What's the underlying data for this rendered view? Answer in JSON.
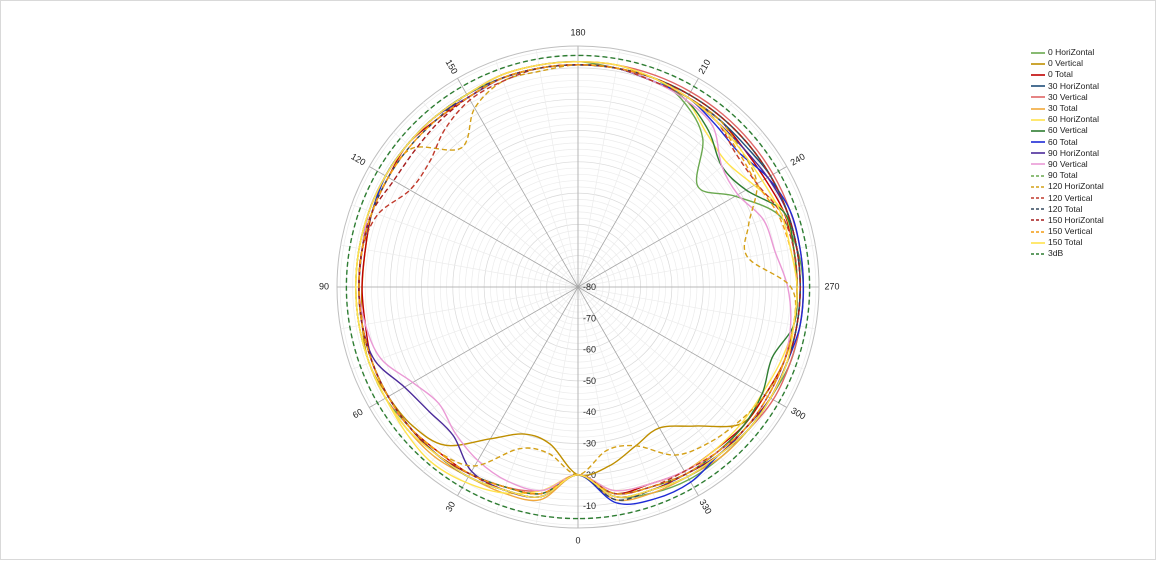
{
  "chart_data": {
    "type": "polar-line",
    "title": "",
    "angle_labels": [
      "0",
      "30",
      "60",
      "90",
      "120",
      "150",
      "180",
      "210",
      "240",
      "270",
      "300",
      "330"
    ],
    "radial_ticks": [
      -10,
      -20,
      -30,
      -40,
      -50,
      -60,
      -70,
      -80
    ],
    "radial_range": [
      -80,
      -3
    ],
    "grid": true,
    "legend_position": "right",
    "angle_direction": "0 at bottom, increasing clockwise (90 left, 180 top, 270 right)",
    "series": [
      {
        "name": "0 HoriZontal",
        "color": "#6aa84f",
        "dash": "solid",
        "anchor_values": [
          -20,
          -12,
          -11,
          -10,
          -10,
          -9,
          -9,
          -9,
          -9,
          -9,
          -9,
          -9,
          -9,
          -9,
          -9,
          -9,
          -8,
          -8,
          -8,
          -9,
          -9,
          -12,
          -18,
          -30,
          -22,
          -12,
          -9,
          -8,
          -8,
          -8,
          -9,
          -9,
          -9,
          -9,
          -10,
          -12
        ]
      },
      {
        "name": "0 Vertical",
        "color": "#bf8f00",
        "dash": "solid",
        "anchor_values": [
          -20,
          -29,
          -30,
          -24,
          -14,
          -11,
          -10,
          -9,
          -10,
          -11,
          -11,
          -10,
          -9,
          -9,
          -9,
          -9,
          -8,
          -8,
          -8,
          -8,
          -9,
          -9,
          -9,
          -9,
          -9,
          -9,
          -10,
          -10,
          -10,
          -10,
          -11,
          -12,
          -22,
          -28,
          -26,
          -22
        ]
      },
      {
        "name": "0 Total",
        "color": "#c00000",
        "dash": "solid",
        "anchor_values": [
          -20,
          -13,
          -12,
          -11,
          -11,
          -10,
          -10,
          -10,
          -11,
          -11,
          -11,
          -10,
          -10,
          -9,
          -10,
          -10,
          -9,
          -9,
          -9,
          -9,
          -10,
          -10,
          -10,
          -11,
          -11,
          -10,
          -10,
          -10,
          -10,
          -10,
          -11,
          -11,
          -12,
          -12,
          -13,
          -13
        ]
      },
      {
        "name": "30 HoriZontal",
        "color": "#1f4e79",
        "dash": "solid",
        "anchor_values": [
          -20,
          -12,
          -11,
          -10,
          -10,
          -10,
          -10,
          -10,
          -10,
          -10,
          -10,
          -10,
          -9,
          -9,
          -9,
          -9,
          -9,
          -9,
          -9,
          -9,
          -10,
          -10,
          -10,
          -10,
          -9,
          -9,
          -9,
          -9,
          -9,
          -9,
          -9,
          -10,
          -10,
          -10,
          -11,
          -12
        ]
      },
      {
        "name": "30 Vertical",
        "color": "#e06666",
        "dash": "solid",
        "anchor_values": [
          -20,
          -14,
          -12,
          -11,
          -10,
          -10,
          -9,
          -9,
          -9,
          -9,
          -9,
          -9,
          -9,
          -9,
          -9,
          -9,
          -8,
          -8,
          -8,
          -8,
          -8,
          -8,
          -8,
          -8,
          -8,
          -8,
          -8,
          -8,
          -8,
          -8,
          -8,
          -9,
          -10,
          -11,
          -12,
          -13
        ]
      },
      {
        "name": "30 Total",
        "color": "#f1a83b",
        "dash": "solid",
        "anchor_values": [
          -20,
          -11,
          -10,
          -10,
          -9,
          -9,
          -9,
          -9,
          -9,
          -9,
          -9,
          -9,
          -9,
          -9,
          -9,
          -9,
          -9,
          -9,
          -9,
          -9,
          -9,
          -9,
          -9,
          -9,
          -9,
          -9,
          -9,
          -9,
          -9,
          -9,
          -9,
          -9,
          -9,
          -10,
          -10,
          -11
        ]
      },
      {
        "name": "60 HoriZontal",
        "color": "#ffe34d",
        "dash": "solid",
        "anchor_values": [
          -20,
          -14,
          -10,
          -8,
          -7,
          -8,
          -9,
          -9,
          -9,
          -9,
          -9,
          -9,
          -9,
          -9,
          -9,
          -9,
          -9,
          -9,
          -9,
          -9,
          -10,
          -11,
          -16,
          -18,
          -15,
          -10,
          -10,
          -10,
          -10,
          -11,
          -12,
          -12,
          -12,
          -12,
          -13,
          -14
        ]
      },
      {
        "name": "60 Vertical",
        "color": "#2e7d32",
        "dash": "solid",
        "anchor_values": [
          -20,
          -13,
          -12,
          -11,
          -10,
          -10,
          -10,
          -10,
          -10,
          -10,
          -10,
          -9,
          -9,
          -9,
          -9,
          -9,
          -9,
          -9,
          -9,
          -9,
          -10,
          -11,
          -15,
          -20,
          -18,
          -10,
          -10,
          -10,
          -10,
          -14,
          -12,
          -11,
          -11,
          -11,
          -12,
          -13
        ]
      },
      {
        "name": "60 Total",
        "color": "#1d2ad6",
        "dash": "solid",
        "anchor_values": [
          -20,
          -12,
          -11,
          -10,
          -10,
          -10,
          -10,
          -10,
          -10,
          -10,
          -10,
          -10,
          -9,
          -9,
          -9,
          -9,
          -9,
          -9,
          -9,
          -9,
          -10,
          -10,
          -12,
          -13,
          -10,
          -8,
          -8,
          -8,
          -8,
          -9,
          -9,
          -9,
          -10,
          -8,
          -8,
          -10
        ]
      },
      {
        "name": "90 HoriZontal",
        "color": "#4b2a9a",
        "dash": "solid",
        "anchor_values": [
          -20,
          -12,
          -11,
          -12,
          -18,
          -18,
          -16,
          -11,
          -10,
          -10,
          -10,
          -9,
          -9,
          -9,
          -9,
          -10,
          -9,
          -9,
          -9,
          -9,
          -9,
          -10,
          -11,
          -11,
          -10,
          -9,
          -9,
          -9,
          -9,
          -9,
          -9,
          -10,
          -10,
          -11,
          -11,
          -12
        ]
      },
      {
        "name": "90 Vertical",
        "color": "#ea99d5",
        "dash": "solid",
        "anchor_values": [
          -20,
          -14,
          -14,
          -16,
          -19,
          -22,
          -19,
          -13,
          -11,
          -10,
          -10,
          -9,
          -9,
          -9,
          -9,
          -9,
          -9,
          -9,
          -9,
          -9,
          -10,
          -11,
          -13,
          -20,
          -21,
          -17,
          -16,
          -13,
          -11,
          -10,
          -10,
          -10,
          -11,
          -12,
          -13,
          -14
        ]
      },
      {
        "name": "90 Total",
        "color": "#6aa84f",
        "dash": "dash",
        "anchor_values": [
          -20,
          -12,
          -11,
          -10,
          -10,
          -10,
          -9,
          -9,
          -9,
          -9,
          -9,
          -9,
          -9,
          -9,
          -9,
          -9,
          -9,
          -9,
          -9,
          -9,
          -9,
          -9,
          -9,
          -9,
          -9,
          -9,
          -9,
          -9,
          -9,
          -9,
          -9,
          -9,
          -10,
          -10,
          -11,
          -12
        ]
      },
      {
        "name": "120 HoriZontal",
        "color": "#d4a017",
        "dash": "dash",
        "anchor_values": [
          -20,
          -26,
          -25,
          -14,
          -11,
          -10,
          -10,
          -10,
          -10,
          -10,
          -10,
          -10,
          -10,
          -11,
          -22,
          -14,
          -10,
          -10,
          -9,
          -9,
          -9,
          -10,
          -10,
          -12,
          -14,
          -22,
          -25,
          -12,
          -10,
          -10,
          -11,
          -13,
          -15,
          -18,
          -26,
          -27
        ]
      },
      {
        "name": "120 Vertical",
        "color": "#c0392b",
        "dash": "dash",
        "anchor_values": [
          -20,
          -13,
          -12,
          -11,
          -10,
          -10,
          -10,
          -10,
          -10,
          -10,
          -10,
          -12,
          -18,
          -18,
          -14,
          -11,
          -10,
          -9,
          -9,
          -9,
          -10,
          -10,
          -11,
          -14,
          -14,
          -11,
          -10,
          -10,
          -10,
          -10,
          -10,
          -10,
          -11,
          -12,
          -12,
          -13
        ]
      },
      {
        "name": "120 Total",
        "color": "#34495e",
        "dash": "dash",
        "anchor_values": [
          -20,
          -12,
          -11,
          -10,
          -10,
          -10,
          -10,
          -10,
          -10,
          -10,
          -10,
          -10,
          -10,
          -10,
          -10,
          -9,
          -9,
          -9,
          -9,
          -9,
          -9,
          -9,
          -9,
          -9,
          -9,
          -9,
          -9,
          -9,
          -9,
          -9,
          -9,
          -9,
          -10,
          -10,
          -11,
          -11
        ]
      },
      {
        "name": "150 HoriZontal",
        "color": "#a61c1c",
        "dash": "dash",
        "anchor_values": [
          -20,
          -12,
          -11,
          -11,
          -10,
          -10,
          -10,
          -10,
          -10,
          -10,
          -10,
          -10,
          -12,
          -12,
          -11,
          -10,
          -9,
          -9,
          -9,
          -9,
          -9,
          -9,
          -9,
          -9,
          -9,
          -9,
          -9,
          -9,
          -9,
          -9,
          -9,
          -10,
          -10,
          -11,
          -11,
          -12
        ]
      },
      {
        "name": "150 Vertical",
        "color": "#f39c12",
        "dash": "dash",
        "anchor_values": [
          -20,
          -13,
          -12,
          -11,
          -11,
          -10,
          -10,
          -10,
          -10,
          -10,
          -10,
          -10,
          -10,
          -10,
          -10,
          -10,
          -9,
          -9,
          -9,
          -9,
          -9,
          -10,
          -11,
          -13,
          -14,
          -12,
          -11,
          -10,
          -10,
          -10,
          -10,
          -10,
          -11,
          -11,
          -12,
          -13
        ]
      },
      {
        "name": "150 Total",
        "color": "#ffe34d",
        "dash": "solid",
        "anchor_values": [
          -20,
          -12,
          -11,
          -10,
          -10,
          -9,
          -9,
          -9,
          -9,
          -9,
          -9,
          -9,
          -9,
          -9,
          -9,
          -9,
          -8,
          -8,
          -8,
          -8,
          -9,
          -10,
          -11,
          -12,
          -12,
          -11,
          -11,
          -10,
          -10,
          -9,
          -9,
          -9,
          -10,
          -10,
          -11,
          -12
        ]
      },
      {
        "name": "3dB",
        "color": "#2e7d32",
        "dash": "dash",
        "anchor_values": [
          -6,
          -6,
          -6,
          -6,
          -6,
          -6,
          -6,
          -6,
          -6,
          -6,
          -6,
          -6,
          -6,
          -6,
          -6,
          -6,
          -6,
          -6,
          -6,
          -6,
          -6,
          -6,
          -6,
          -6,
          -6,
          -6,
          -6,
          -6,
          -6,
          -6,
          -6,
          -6,
          -6,
          -6,
          -6,
          -6
        ]
      }
    ],
    "anchor_angles_deg": [
      0,
      10,
      20,
      30,
      40,
      50,
      60,
      70,
      80,
      90,
      100,
      110,
      120,
      130,
      140,
      150,
      160,
      170,
      180,
      190,
      200,
      210,
      220,
      230,
      240,
      250,
      260,
      270,
      280,
      290,
      300,
      310,
      320,
      330,
      340,
      350
    ]
  }
}
